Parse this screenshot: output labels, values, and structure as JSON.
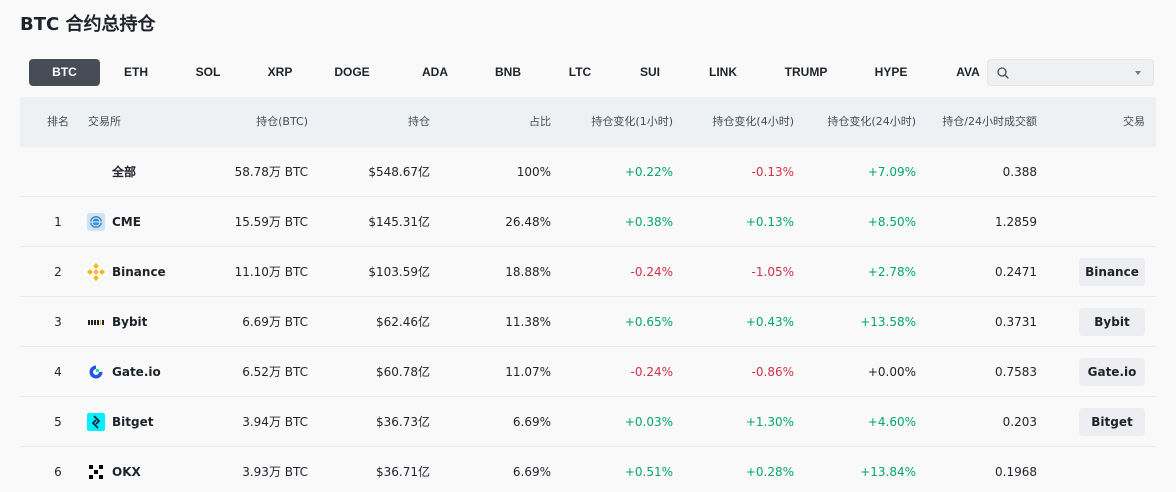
{
  "page": {
    "title": "BTC 合约总持仓"
  },
  "tabs": [
    {
      "label": "BTC",
      "active": true
    },
    {
      "label": "ETH"
    },
    {
      "label": "SOL"
    },
    {
      "label": "XRP"
    },
    {
      "label": "DOGE"
    },
    {
      "label": "ADA"
    },
    {
      "label": "BNB"
    },
    {
      "label": "LTC"
    },
    {
      "label": "SUI"
    },
    {
      "label": "LINK"
    },
    {
      "label": "TRUMP"
    },
    {
      "label": "HYPE"
    },
    {
      "label": "AVA"
    }
  ],
  "search": {
    "value": "",
    "icons": [
      "search-icon",
      "chevron-down-icon"
    ]
  },
  "table": {
    "headers": {
      "rank": "排名",
      "exchange": "交易所",
      "oi_btc": "持仓(BTC)",
      "oi_usd": "持仓",
      "share": "占比",
      "chg_1h": "持仓变化(1小时)",
      "chg_4h": "持仓变化(4小时)",
      "chg_24h": "持仓变化(24小时)",
      "oi_vol": "持仓/24小时成交额",
      "trade": "交易"
    },
    "rows": [
      {
        "rank": "",
        "name": "全部",
        "icon": "",
        "oi_btc": "58.78万 BTC",
        "oi_usd": "$548.67亿",
        "share": "100%",
        "chg_1h": "+0.22%",
        "chg_4h": "-0.13%",
        "chg_24h": "+7.09%",
        "oi_vol": "0.388",
        "trade": ""
      },
      {
        "rank": "1",
        "name": "CME",
        "icon": "cme-logo-icon",
        "oi_btc": "15.59万 BTC",
        "oi_usd": "$145.31亿",
        "share": "26.48%",
        "chg_1h": "+0.38%",
        "chg_4h": "+0.13%",
        "chg_24h": "+8.50%",
        "oi_vol": "1.2859",
        "trade": ""
      },
      {
        "rank": "2",
        "name": "Binance",
        "icon": "binance-logo-icon",
        "oi_btc": "11.10万 BTC",
        "oi_usd": "$103.59亿",
        "share": "18.88%",
        "chg_1h": "-0.24%",
        "chg_4h": "-1.05%",
        "chg_24h": "+2.78%",
        "oi_vol": "0.2471",
        "trade": "Binance"
      },
      {
        "rank": "3",
        "name": "Bybit",
        "icon": "bybit-logo-icon",
        "oi_btc": "6.69万 BTC",
        "oi_usd": "$62.46亿",
        "share": "11.38%",
        "chg_1h": "+0.65%",
        "chg_4h": "+0.43%",
        "chg_24h": "+13.58%",
        "oi_vol": "0.3731",
        "trade": "Bybit"
      },
      {
        "rank": "4",
        "name": "Gate.io",
        "icon": "gateio-logo-icon",
        "oi_btc": "6.52万 BTC",
        "oi_usd": "$60.78亿",
        "share": "11.07%",
        "chg_1h": "-0.24%",
        "chg_4h": "-0.86%",
        "chg_24h": "+0.00%",
        "oi_vol": "0.7583",
        "trade": "Gate.io"
      },
      {
        "rank": "5",
        "name": "Bitget",
        "icon": "bitget-logo-icon",
        "oi_btc": "3.94万 BTC",
        "oi_usd": "$36.73亿",
        "share": "6.69%",
        "chg_1h": "+0.03%",
        "chg_4h": "+1.30%",
        "chg_24h": "+4.60%",
        "oi_vol": "0.203",
        "trade": "Bitget"
      },
      {
        "rank": "6",
        "name": "OKX",
        "icon": "okx-logo-icon",
        "oi_btc": "3.93万 BTC",
        "oi_usd": "$36.71亿",
        "share": "6.69%",
        "chg_1h": "+0.51%",
        "chg_4h": "+0.28%",
        "chg_24h": "+13.84%",
        "oi_vol": "0.1968",
        "trade": ""
      }
    ]
  },
  "colors": {
    "positive": "#03a66d",
    "negative": "#cf304a",
    "neutral": "#1e2329",
    "active_tab": "#474d57",
    "binance": "#f0b90b",
    "bitget": "#1da2b4",
    "gate": "#2354e6"
  }
}
